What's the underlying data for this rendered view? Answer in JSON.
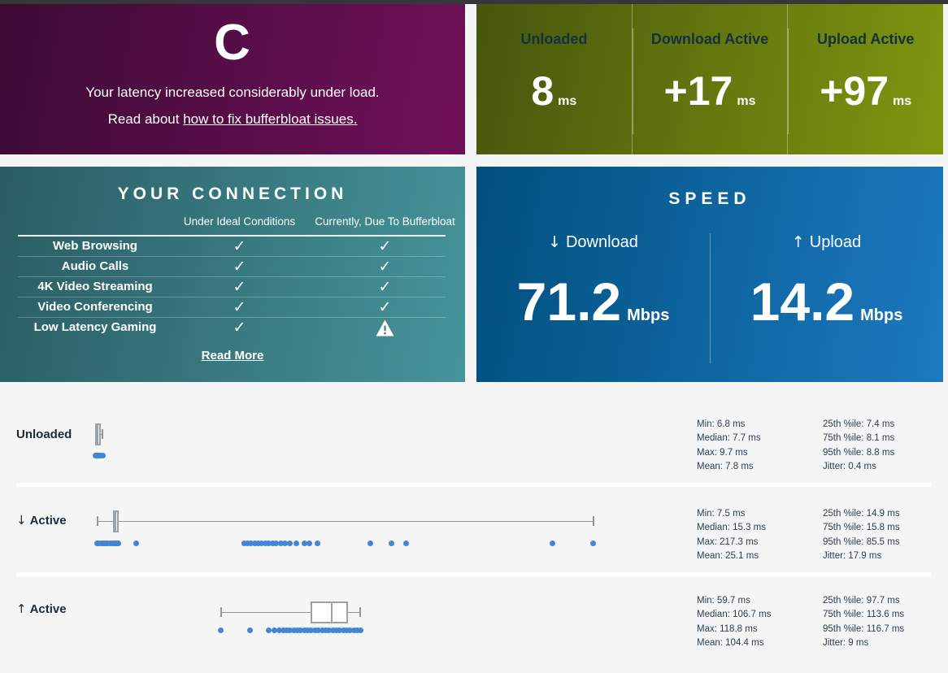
{
  "page": {
    "top_bar_color": "#35373a",
    "background_color": "#f5f5f6",
    "dot_color": "#4285d4"
  },
  "grade_panel": {
    "grade": "C",
    "description_line1": "Your latency increased considerably under load.",
    "description_line2_prefix": "Read about ",
    "description_line2_link": "how to fix bufferbloat issues.",
    "gradient": [
      "#3c0b34",
      "#71105a"
    ]
  },
  "latency_panel": {
    "gradient": [
      "#47560e",
      "#7f970f"
    ],
    "columns": [
      {
        "label": "Unloaded",
        "value": "8",
        "unit": "ms"
      },
      {
        "label": "Download Active",
        "value": "+17",
        "unit": "ms"
      },
      {
        "label": "Upload Active",
        "value": "+97",
        "unit": "ms"
      }
    ]
  },
  "connection_panel": {
    "title": "YOUR CONNECTION",
    "gradient": [
      "#2a5d63",
      "#46949b"
    ],
    "column_headers": [
      "Under Ideal Conditions",
      "Currently, Due To Bufferbloat"
    ],
    "rows": [
      {
        "label": "Web Browsing",
        "ideal": "check",
        "current": "check"
      },
      {
        "label": "Audio Calls",
        "ideal": "check",
        "current": "check"
      },
      {
        "label": "4K Video Streaming",
        "ideal": "check",
        "current": "check"
      },
      {
        "label": "Video Conferencing",
        "ideal": "check",
        "current": "check"
      },
      {
        "label": "Low Latency Gaming",
        "ideal": "check",
        "current": "warning"
      }
    ],
    "read_more": "Read More"
  },
  "speed_panel": {
    "title": "SPEED",
    "gradient": [
      "#00507e",
      "#1c79c0"
    ],
    "download": {
      "arrow": "↓",
      "label": "Download",
      "value": "71.2",
      "unit": "Mbps"
    },
    "upload": {
      "arrow": "↑",
      "label": "Upload",
      "value": "14.2",
      "unit": "Mbps"
    }
  },
  "chart_data": {
    "type": "boxplot_scatter",
    "x_axis_ms_range": [
      0,
      230
    ],
    "grid": false,
    "charts": [
      {
        "label": "Unloaded",
        "arrow": "",
        "box_ms": {
          "min": 6.8,
          "q1": 7.4,
          "median": 7.7,
          "q3": 8.1,
          "max": 9.7
        },
        "samples_ms": [
          6.8,
          7.1,
          7.4,
          7.6,
          7.8,
          8.0,
          8.2,
          8.5,
          8.8,
          9.2,
          9.7
        ],
        "stats_col1": [
          "Min: 6.8 ms",
          "Median: 7.7 ms",
          "Max: 9.7 ms",
          "Mean: 7.8 ms"
        ],
        "stats_col2": [
          "25th %ile: 7.4 ms",
          "75th %ile: 8.1 ms",
          "95th %ile: 8.8 ms",
          "Jitter: 0.4 ms"
        ]
      },
      {
        "label": "Active",
        "arrow": "↓",
        "box_ms": {
          "min": 7.5,
          "q1": 14.9,
          "median": 15.3,
          "q3": 15.8,
          "max": 217.3
        },
        "samples_ms": [
          7.5,
          8.2,
          9.0,
          9.8,
          10.5,
          11.2,
          12.0,
          12.8,
          13.5,
          14.2,
          14.9,
          15.3,
          15.8,
          16.3,
          24,
          69.5,
          71,
          72.5,
          74,
          75.5,
          77,
          78.5,
          80,
          81.5,
          83,
          85,
          87,
          89,
          91.5,
          95,
          97,
          100.5,
          123,
          132,
          138,
          200,
          217.3
        ],
        "stats_col1": [
          "Min: 7.5 ms",
          "Median: 15.3 ms",
          "Max: 217.3 ms",
          "Mean: 25.1 ms"
        ],
        "stats_col2": [
          "25th %ile: 14.9 ms",
          "75th %ile: 15.8 ms",
          "95th %ile: 85.5 ms",
          "Jitter: 17.9 ms"
        ]
      },
      {
        "label": "Active",
        "arrow": "↑",
        "box_ms": {
          "min": 59.7,
          "q1": 97.7,
          "median": 106.7,
          "q3": 113.6,
          "max": 118.8
        },
        "samples_ms": [
          59.7,
          72,
          80,
          82.5,
          84.5,
          86,
          87.5,
          89,
          90.5,
          92,
          93.5,
          95,
          96.5,
          98,
          99.5,
          101,
          102.5,
          104,
          105.5,
          107,
          108.5,
          110,
          111.5,
          113,
          114.5,
          116,
          117.5,
          118.8
        ],
        "stats_col1": [
          "Min: 59.7 ms",
          "Median: 106.7 ms",
          "Max: 118.8 ms",
          "Mean: 104.4 ms"
        ],
        "stats_col2": [
          "25th %ile: 97.7 ms",
          "75th %ile: 113.6 ms",
          "95th %ile: 116.7 ms",
          "Jitter: 9 ms"
        ]
      }
    ]
  }
}
